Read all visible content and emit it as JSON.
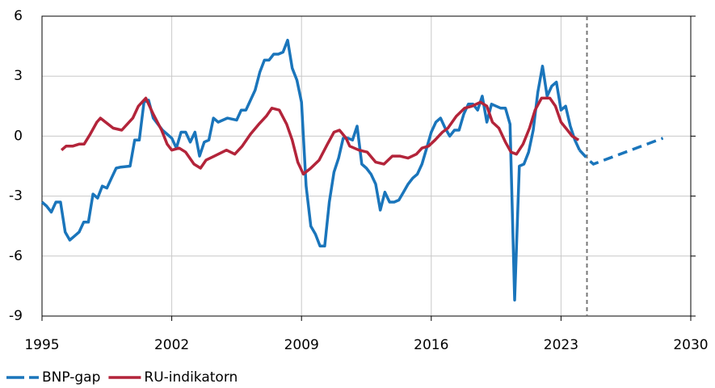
{
  "chart_data": {
    "type": "line",
    "xlim": [
      1995,
      2030
    ],
    "xticks": [
      1995,
      2002,
      2009,
      2016,
      2023,
      2030
    ],
    "ylim": [
      -9,
      6
    ],
    "yticks": [
      -9,
      -6,
      -3,
      0,
      3,
      6
    ],
    "grid": true,
    "vline": 2024.4,
    "series": [
      {
        "name": "BNP-gap",
        "color": "#1a75bb",
        "x": [
          1995.0,
          1995.25,
          1995.5,
          1995.75,
          1996.0,
          1996.25,
          1996.5,
          1996.75,
          1997.0,
          1997.25,
          1997.5,
          1997.75,
          1998.0,
          1998.25,
          1998.5,
          1998.75,
          1999.0,
          1999.25,
          1999.75,
          2000.0,
          2000.25,
          2000.5,
          2000.75,
          2001.0,
          2001.5,
          2002.0,
          2002.25,
          2002.5,
          2002.75,
          2003.0,
          2003.25,
          2003.5,
          2003.75,
          2004.0,
          2004.25,
          2004.5,
          2005.0,
          2005.5,
          2005.75,
          2006.0,
          2006.5,
          2006.75,
          2007.0,
          2007.25,
          2007.5,
          2007.75,
          2008.0,
          2008.25,
          2008.5,
          2008.75,
          2009.0,
          2009.25,
          2009.5,
          2009.75,
          2010.0,
          2010.25,
          2010.5,
          2010.75,
          2011.0,
          2011.25,
          2011.5,
          2011.75,
          2012.0,
          2012.25,
          2012.5,
          2012.75,
          2013.0,
          2013.25,
          2013.5,
          2013.75,
          2014.0,
          2014.25,
          2014.5,
          2014.75,
          2015.0,
          2015.25,
          2015.5,
          2015.75,
          2016.0,
          2016.25,
          2016.5,
          2016.75,
          2017.0,
          2017.25,
          2017.5,
          2017.75,
          2018.0,
          2018.25,
          2018.5,
          2018.75,
          2019.0,
          2019.25,
          2019.5,
          2019.75,
          2020.0,
          2020.25,
          2020.5,
          2020.75,
          2021.0,
          2021.25,
          2021.5,
          2021.75,
          2022.0,
          2022.25,
          2022.5,
          2022.75,
          2023.0,
          2023.25,
          2023.5,
          2023.75,
          2024.0
        ],
        "values": [
          -3.3,
          -3.5,
          -3.8,
          -3.3,
          -3.3,
          -4.8,
          -5.2,
          -5.0,
          -4.8,
          -4.3,
          -4.3,
          -2.9,
          -3.1,
          -2.5,
          -2.6,
          -2.1,
          -1.6,
          -1.55,
          -1.5,
          -0.2,
          -0.2,
          1.7,
          1.8,
          0.9,
          0.3,
          -0.1,
          -0.6,
          0.2,
          0.2,
          -0.3,
          0.2,
          -1.0,
          -0.3,
          -0.2,
          0.9,
          0.7,
          0.9,
          0.8,
          1.3,
          1.3,
          2.3,
          3.2,
          3.8,
          3.8,
          4.1,
          4.1,
          4.2,
          4.8,
          3.4,
          2.8,
          1.7,
          -2.5,
          -4.5,
          -4.9,
          -5.5,
          -5.5,
          -3.3,
          -1.8,
          -1.1,
          -0.1,
          -0.1,
          -0.2,
          0.5,
          -1.4,
          -1.6,
          -1.9,
          -2.4,
          -3.7,
          -2.8,
          -3.3,
          -3.3,
          -3.2,
          -2.8,
          -2.4,
          -2.1,
          -1.9,
          -1.4,
          -0.6,
          0.2,
          0.7,
          0.9,
          0.4,
          0.0,
          0.3,
          0.3,
          1.1,
          1.6,
          1.6,
          1.3,
          2.0,
          0.7,
          1.6,
          1.5,
          1.4,
          1.4,
          0.6,
          -8.2,
          -1.5,
          -1.4,
          -0.8,
          0.3,
          2.2,
          3.5,
          2.0,
          2.5,
          2.7,
          1.3,
          1.5,
          0.5,
          -0.2,
          -0.7
        ],
        "forecast": {
          "x": [
            2024.0,
            2024.5,
            2024.75,
            2028.5
          ],
          "values": [
            -0.7,
            -1.2,
            -1.4,
            -0.1
          ]
        }
      },
      {
        "name": "RU-indikatorn",
        "color": "#b3243a",
        "x": [
          1996.05,
          1996.3,
          1996.65,
          1997.0,
          1997.27,
          1997.6,
          1997.96,
          1998.15,
          1998.84,
          1999.3,
          1999.9,
          2000.2,
          2000.6,
          2001.0,
          2001.45,
          2001.75,
          2002.0,
          2002.4,
          2002.75,
          2003.2,
          2003.55,
          2003.85,
          2004.3,
          2004.95,
          2005.4,
          2005.8,
          2006.25,
          2006.7,
          2007.1,
          2007.4,
          2007.8,
          2008.2,
          2008.5,
          2008.8,
          2009.1,
          2009.5,
          2009.95,
          2010.4,
          2010.75,
          2011.05,
          2011.4,
          2011.6,
          2012.1,
          2012.55,
          2013.0,
          2013.45,
          2013.9,
          2014.3,
          2014.75,
          2015.2,
          2015.5,
          2015.85,
          2016.2,
          2016.6,
          2016.9,
          2017.35,
          2017.8,
          2018.2,
          2018.65,
          2019.0,
          2019.3,
          2019.65,
          2020.0,
          2020.3,
          2020.6,
          2020.95,
          2021.3,
          2021.6,
          2021.95,
          2022.4,
          2022.7,
          2023.0,
          2023.35,
          2023.6,
          2023.95
        ],
        "values": [
          -0.7,
          -0.5,
          -0.5,
          -0.4,
          -0.4,
          0.1,
          0.7,
          0.9,
          0.4,
          0.3,
          0.9,
          1.5,
          1.9,
          1.1,
          0.3,
          -0.4,
          -0.7,
          -0.6,
          -0.8,
          -1.4,
          -1.6,
          -1.2,
          -1.0,
          -0.7,
          -0.9,
          -0.5,
          0.1,
          0.6,
          1.0,
          1.4,
          1.3,
          0.6,
          -0.2,
          -1.3,
          -1.9,
          -1.6,
          -1.2,
          -0.4,
          0.2,
          0.3,
          -0.1,
          -0.5,
          -0.7,
          -0.8,
          -1.3,
          -1.4,
          -1.0,
          -1.0,
          -1.1,
          -0.9,
          -0.6,
          -0.5,
          -0.2,
          0.2,
          0.4,
          1.0,
          1.4,
          1.5,
          1.7,
          1.5,
          0.7,
          0.4,
          -0.3,
          -0.8,
          -0.9,
          -0.4,
          0.4,
          1.3,
          1.9,
          1.9,
          1.5,
          0.7,
          0.3,
          0.0,
          -0.2
        ]
      }
    ]
  }
}
